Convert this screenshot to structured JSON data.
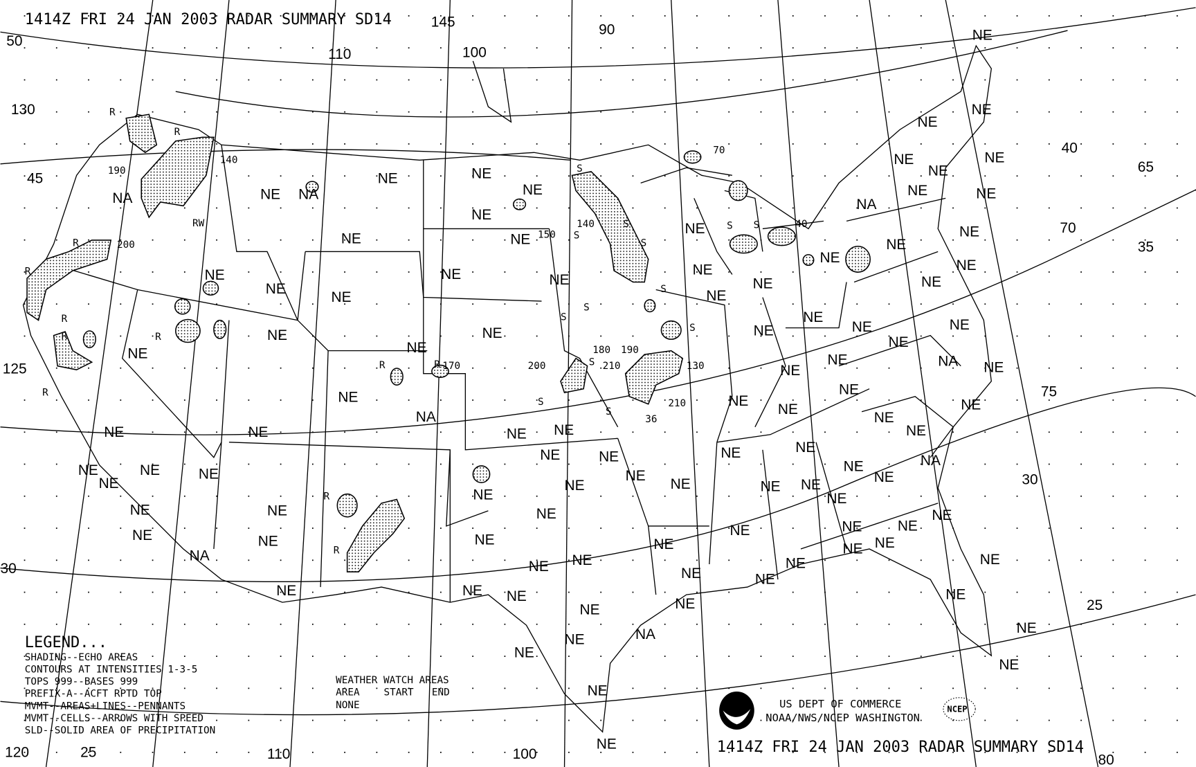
{
  "header": {
    "title": "1414Z FRI 24 JAN 2003 RADAR SUMMARY SD14"
  },
  "footer": {
    "title": "1414Z FRI 24 JAN 2003 RADAR SUMMARY SD14",
    "agency_line1": "US DEPT OF COMMERCE",
    "agency_line2": "NOAA/NWS/NCEP WASHINGTON",
    "noaa_logo_text": "NOAA",
    "ncep_logo_text": "NCEP"
  },
  "legend": {
    "title": "LEGEND...",
    "lines": [
      "SHADING--ECHO AREAS",
      "CONTOURS AT INTENSITIES 1-3-5",
      "TOPS 999--BASES 999",
      "PREFIX-A--ACFT RPTD TOP",
      "MVMT--AREAS+LINES--PENNANTS",
      "MVMT--CELLS--ARROWS WITH SPEED",
      "SLD--SOLID AREA OF PRECIPITATION"
    ]
  },
  "watch": {
    "title": "WEATHER WATCH AREAS",
    "columns": [
      "AREA",
      "START",
      "END"
    ],
    "value": "NONE"
  },
  "grid_labels": [
    "50",
    "130",
    "45",
    "125",
    "110",
    "100",
    "90",
    "40",
    "65",
    "70",
    "35",
    "75",
    "30",
    "25",
    "120",
    "25",
    "110",
    "100",
    "80",
    "30",
    "145"
  ],
  "region_labels": [
    "NE",
    "NE",
    "NE",
    "NE",
    "NE",
    "NE",
    "NA",
    "NE",
    "NE",
    "NE",
    "NE",
    "NE",
    "NE",
    "NE",
    "NE",
    "NE",
    "NE",
    "NE",
    "NA",
    "NE",
    "NE",
    "NE",
    "NE",
    "NE",
    "NE",
    "NE",
    "NE",
    "NE",
    "NE",
    "NE",
    "NE",
    "NE",
    "NE",
    "NE",
    "NA",
    "NE",
    "NE",
    "NE",
    "NE",
    "NE",
    "NE",
    "NE",
    "NE",
    "NE",
    "NE",
    "NE",
    "NE",
    "NE",
    "NE",
    "NE",
    "NE",
    "NE",
    "NE",
    "NE",
    "NE",
    "NE",
    "NE",
    "NE",
    "NA",
    "NE",
    "NE",
    "NE",
    "NE",
    "NE",
    "NE",
    "NE",
    "NE",
    "NE",
    "NE",
    "NE",
    "NE",
    "NE",
    "NE",
    "NE",
    "NE",
    "NE",
    "NE",
    "NE",
    "NE",
    "NE",
    "NE",
    "NE",
    "NE",
    "NE",
    "NE",
    "NA",
    "NE",
    "NE",
    "NA",
    "NA",
    "NE",
    "NE",
    "NE",
    "NE",
    "NE",
    "NE",
    "NE",
    "NE",
    "NE",
    "NE",
    "NE",
    "NA",
    "NE",
    "NE",
    "NE",
    "NE",
    "NE",
    "NE",
    "NE",
    "NE",
    "NE"
  ],
  "tops": [
    "190",
    "140",
    "200",
    "150",
    "140",
    "70",
    "40",
    "180",
    "190",
    "200",
    "210",
    "130",
    "210",
    "170",
    "36"
  ],
  "echo_markers": [
    "R",
    "R",
    "R",
    "RW",
    "R",
    "R",
    "R",
    "R",
    "R",
    "R",
    "R",
    "R",
    "R",
    "S",
    "S",
    "S",
    "S",
    "S",
    "S",
    "S",
    "S",
    "S",
    "S",
    "S",
    "S",
    "S"
  ]
}
